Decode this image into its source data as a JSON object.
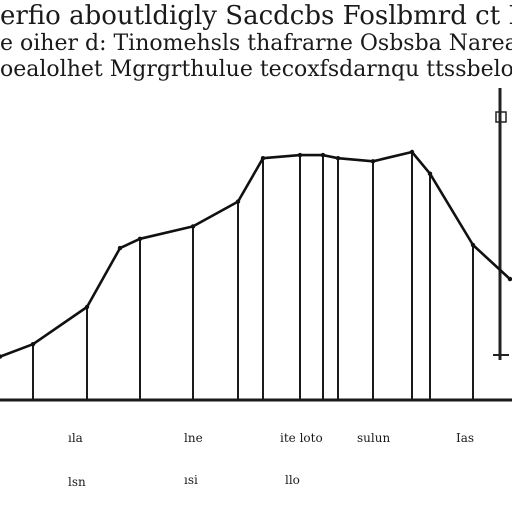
{
  "chart_data": {
    "type": "line",
    "title_lines": [
      "erfio aboutldigly Sacdcbs Foslbmrd ct Flifiect Itu",
      "e oiher d: Tinomehsls thafrarne Osbsba Narearres",
      "oealolhet Mgrgrthulue tecoxfsdarnqu ttssbelo\\"
    ],
    "x_tick_labels_row1": [
      "ıla",
      "lne",
      "ite loto",
      "sulun",
      "Ias"
    ],
    "x_tick_labels_row2": [
      "lsn",
      "ısi",
      "llo"
    ],
    "xlabel": "",
    "ylabel": "",
    "x": [
      0,
      33,
      87,
      120,
      140,
      193,
      238,
      263,
      300,
      323,
      338,
      373,
      412,
      430,
      473,
      510
    ],
    "y": [
      14,
      18,
      30,
      49,
      52,
      56,
      64,
      78,
      79,
      79,
      78,
      77,
      80,
      73,
      50,
      39
    ],
    "drop_lines_at": [
      33,
      87,
      140,
      193,
      238,
      263,
      300,
      323,
      338,
      373,
      412,
      430,
      473
    ],
    "x_range": [
      0,
      512
    ],
    "y_range": [
      0,
      100
    ],
    "grid": false,
    "legend": "none"
  }
}
